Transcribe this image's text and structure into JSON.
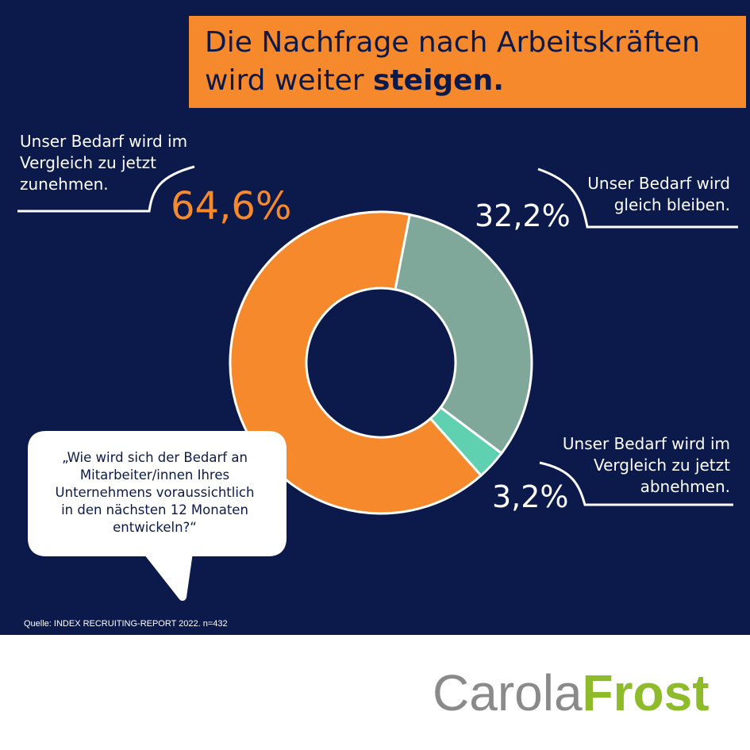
{
  "title": {
    "part1": "Die Nachfrage nach Arbeitskräften",
    "part2": "wird weiter ",
    "part2_bold": "steigen."
  },
  "chart_data": {
    "type": "pie",
    "variant": "donut",
    "slices": [
      {
        "label": "Unser Bedarf wird im Vergleich zu jetzt zunehmen.",
        "value": 64.6,
        "value_text": "64,6%",
        "color": "#f6892c"
      },
      {
        "label": "Unser Bedarf wird gleich bleiben.",
        "value": 32.2,
        "value_text": "32,2%",
        "color": "#7fa89a"
      },
      {
        "label": "Unser Bedarf wird im Vergleich zu jetzt abnehmen.",
        "value": 3.2,
        "value_text": "3,2%",
        "color": "#5fd0b0"
      }
    ]
  },
  "labels": {
    "increase": {
      "line1": "Unser Bedarf wird im",
      "line2": "Vergleich zu jetzt",
      "line3": "zunehmen."
    },
    "same": {
      "line1": "Unser Bedarf wird",
      "line2": "gleich bleiben."
    },
    "decrease": {
      "line1": "Unser Bedarf wird im",
      "line2": "Vergleich zu jetzt",
      "line3": "abnehmen."
    }
  },
  "question": {
    "line1": "„Wie wird sich der Bedarf an",
    "line2": "Mitarbeiter/innen Ihres",
    "line3": "Unternehmens voraussichtlich",
    "line4": "in den nächsten 12 Monaten",
    "line5": "entwickeln?“"
  },
  "source": "Quelle: INDEX RECRUITING-REPORT 2022. n=432",
  "logo": {
    "part1": "Carola",
    "part2": "Frost",
    "part2_color": "#8dbb2a"
  },
  "colors": {
    "background": "#0b1a4a",
    "accent": "#f6892c",
    "text_on_dark": "#ffffff"
  }
}
